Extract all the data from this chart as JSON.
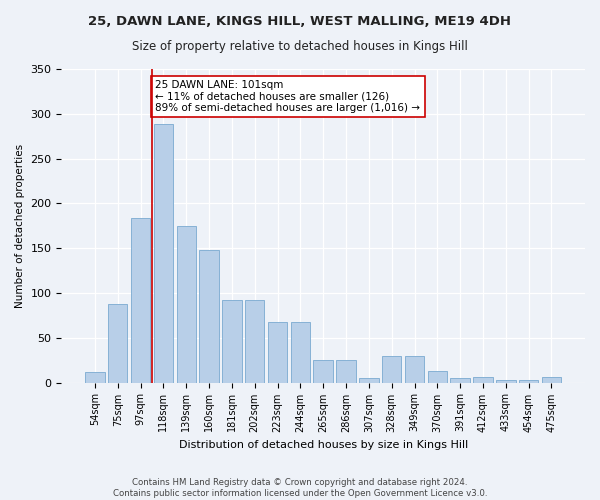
{
  "title1": "25, DAWN LANE, KINGS HILL, WEST MALLING, ME19 4DH",
  "title2": "Size of property relative to detached houses in Kings Hill",
  "xlabel": "Distribution of detached houses by size in Kings Hill",
  "ylabel": "Number of detached properties",
  "categories": [
    "54sqm",
    "75sqm",
    "97sqm",
    "118sqm",
    "139sqm",
    "160sqm",
    "181sqm",
    "202sqm",
    "223sqm",
    "244sqm",
    "265sqm",
    "286sqm",
    "307sqm",
    "328sqm",
    "349sqm",
    "370sqm",
    "391sqm",
    "412sqm",
    "433sqm",
    "454sqm",
    "475sqm"
  ],
  "values": [
    12,
    88,
    184,
    289,
    175,
    148,
    92,
    92,
    68,
    68,
    25,
    25,
    5,
    30,
    30,
    13,
    5,
    6,
    3,
    3,
    6
  ],
  "bar_color": "#b8cfe8",
  "bar_edge_color": "#7aaad0",
  "vline_x": 2.5,
  "vline_color": "#cc0000",
  "annotation_text": "25 DAWN LANE: 101sqm\n← 11% of detached houses are smaller (126)\n89% of semi-detached houses are larger (1,016) →",
  "annotation_box_color": "#ffffff",
  "annotation_box_edge": "#cc0000",
  "ylim": [
    0,
    350
  ],
  "yticks": [
    0,
    50,
    100,
    150,
    200,
    250,
    300,
    350
  ],
  "footer1": "Contains HM Land Registry data © Crown copyright and database right 2024.",
  "footer2": "Contains public sector information licensed under the Open Government Licence v3.0.",
  "bg_color": "#eef2f8",
  "plot_bg_color": "#eef2f8",
  "title1_fontsize": 9.5,
  "title2_fontsize": 8.5,
  "annot_fontsize": 7.5,
  "ylabel_fontsize": 7.5,
  "xlabel_fontsize": 8.0,
  "footer_fontsize": 6.2
}
